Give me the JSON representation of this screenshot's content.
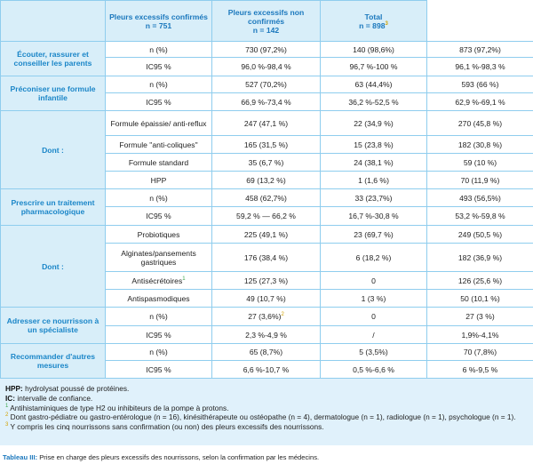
{
  "table": {
    "header": [
      {
        "title": "Pleurs excessifs confirmés",
        "n": "n = 751"
      },
      {
        "title": "Pleurs excessifs non confirmés",
        "n": "n = 142"
      },
      {
        "title": "Total",
        "n": "n = 898",
        "sup": "3"
      }
    ],
    "sections": [
      {
        "label": "Écouter, rassurer et conseiller les parents",
        "rows": [
          {
            "label": "n (%)",
            "cells": [
              "730 (97,2%)",
              "140 (98,6%)",
              "873 (97,2%)"
            ]
          },
          {
            "label": "IC95 %",
            "cells": [
              "96,0 %-98,4 %",
              "96,7 %-100 %",
              "96,1 %-98,3 %"
            ]
          }
        ]
      },
      {
        "label": "Préconiser une formule infantile",
        "rows": [
          {
            "label": "n (%)",
            "cells": [
              "527 (70,2%)",
              "63 (44,4%)",
              "593 (66 %)"
            ]
          },
          {
            "label": "IC95 %",
            "cells": [
              "66,9 %-73,4 %",
              "36,2 %-52,5 %",
              "62,9 %-69,1 %"
            ]
          }
        ]
      },
      {
        "label": "Dont :",
        "rows": [
          {
            "label": "Formule épaissie/ anti-reflux",
            "cells": [
              "247 (47,1 %)",
              "22 (34,9 %)",
              "270 (45,8 %)"
            ]
          },
          {
            "label": "Formule \"anti-coliques\"",
            "cells": [
              "165 (31,5 %)",
              "15 (23,8 %)",
              "182 (30,8 %)"
            ]
          },
          {
            "label": "Formule standard",
            "cells": [
              "35 (6,7 %)",
              "24 (38,1 %)",
              "59 (10 %)"
            ]
          },
          {
            "label": "HPP",
            "cells": [
              "69 (13,2 %)",
              "1 (1,6 %)",
              "70 (11,9 %)"
            ]
          }
        ]
      },
      {
        "label": "Prescrire un traitement pharmacologique",
        "rows": [
          {
            "label": "n (%)",
            "cells": [
              "458 (62,7%)",
              "33 (23,7%)",
              "493 (56,5%)"
            ]
          },
          {
            "label": "IC95 %",
            "cells": [
              "59,2 % — 66,2 %",
              "16,7 %-30,8 %",
              "53,2 %-59,8 %"
            ]
          }
        ]
      },
      {
        "label": "Dont :",
        "rows": [
          {
            "label": "Probiotiques",
            "cells": [
              "225 (49,1 %)",
              "23 (69,7 %)",
              "249 (50,5 %)"
            ]
          },
          {
            "label": "Alginates/pansements gastriques",
            "cells": [
              "176 (38,4 %)",
              "6 (18,2 %)",
              "182 (36,9 %)"
            ]
          },
          {
            "label": "Antisécrétoires",
            "label_sup": "1",
            "cells": [
              "125 (27,3 %)",
              "0",
              "126 (25,6 %)"
            ]
          },
          {
            "label": "Antispasmodiques",
            "cells": [
              "49 (10,7 %)",
              "1 (3 %)",
              "50 (10,1 %)"
            ]
          }
        ]
      },
      {
        "label": "Adresser ce nourrisson à un spécialiste",
        "rows": [
          {
            "label": "n (%)",
            "cells": [
              {
                "text": "27 (3,6%)",
                "sup": "2"
              },
              "0",
              "27 (3 %)"
            ]
          },
          {
            "label": "IC95 %",
            "cells": [
              "2,3 %-4,9 %",
              "/",
              "1,9%-4,1%"
            ]
          }
        ]
      },
      {
        "label": "Recommander d'autres mesures",
        "rows": [
          {
            "label": "n (%)",
            "cells": [
              "65 (8,7%)",
              "5 (3,5%)",
              "70 (7,8%)"
            ]
          },
          {
            "label": "IC95 %",
            "cells": [
              "6,6 %-10,7 %",
              "0,5 %-6,6 %",
              "6 %-9,5 %"
            ]
          }
        ]
      }
    ]
  },
  "notes": [
    {
      "term": "HPP:",
      "text": "hydrolysat poussé de protéines."
    },
    {
      "term": "IC:",
      "text": "intervalle de confiance."
    },
    {
      "marker": "1",
      "text": "Antihistaminiques de type H2 ou inhibiteurs de la pompe à protons."
    },
    {
      "marker": "2",
      "text": "Dont gastro-pédiatre ou gastro-entérologue (n = 16), kinésithérapeute ou ostéopathe (n = 4), dermatologue (n = 1), radiologue (n = 1), psychologue (n = 1)."
    },
    {
      "marker": "3",
      "text": "Y compris les cinq nourrissons sans confirmation (ou non) des pleurs excessifs des nourrissons."
    }
  ],
  "caption": {
    "label": "Tableau III:",
    "text": "Prise en charge des pleurs excessifs des nourrissons, selon la confirmation par les médecins."
  }
}
